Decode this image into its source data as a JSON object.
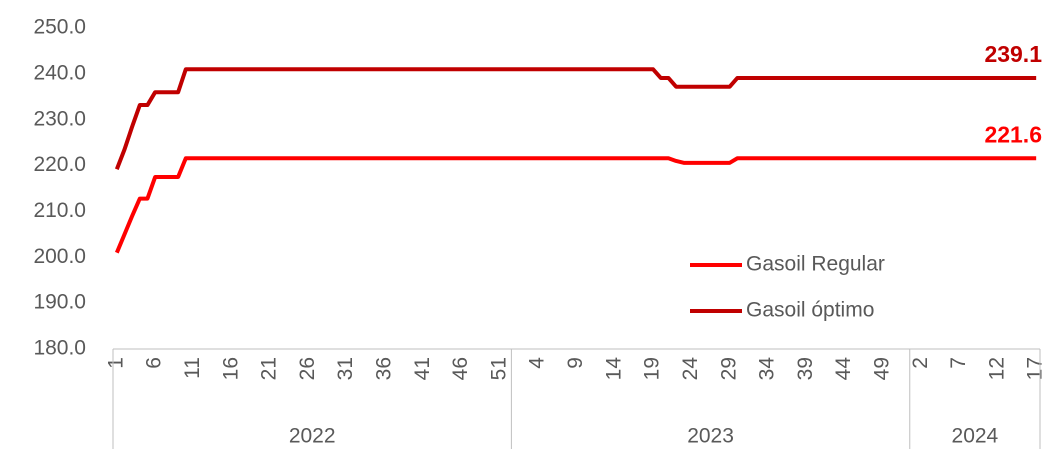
{
  "chart_data": {
    "type": "line",
    "categories": [
      "1",
      null,
      null,
      null,
      null,
      "6",
      null,
      null,
      null,
      null,
      "11",
      null,
      null,
      null,
      null,
      "16",
      null,
      null,
      null,
      null,
      "21",
      null,
      null,
      null,
      null,
      "26",
      null,
      null,
      null,
      null,
      "31",
      null,
      null,
      null,
      null,
      "36",
      null,
      null,
      null,
      null,
      "41",
      null,
      null,
      null,
      null,
      "46",
      null,
      null,
      null,
      null,
      "51",
      null,
      null,
      null,
      null,
      "4",
      null,
      null,
      null,
      null,
      "9",
      null,
      null,
      null,
      null,
      "14",
      null,
      null,
      null,
      null,
      "19",
      null,
      null,
      null,
      null,
      "24",
      null,
      null,
      null,
      null,
      "29",
      null,
      null,
      null,
      null,
      "34",
      null,
      null,
      null,
      null,
      "39",
      null,
      null,
      null,
      null,
      "44",
      null,
      null,
      null,
      null,
      "49",
      null,
      null,
      null,
      null,
      "2",
      null,
      null,
      null,
      null,
      "7",
      null,
      null,
      null,
      null,
      "12",
      null,
      null,
      null,
      null,
      "17"
    ],
    "groups": [
      {
        "name": "2022",
        "size": 52
      },
      {
        "name": "2023",
        "size": 52
      },
      {
        "name": "2024",
        "size": 17
      }
    ],
    "series": [
      {
        "name": "Gasoil Regular",
        "color": "#ff0000",
        "end_label": "221.6",
        "values": [
          201.0,
          205.0,
          209.0,
          212.8,
          212.8,
          217.5,
          217.5,
          217.5,
          217.5,
          221.6,
          221.6,
          221.6,
          221.6,
          221.6,
          221.6,
          221.6,
          221.6,
          221.6,
          221.6,
          221.6,
          221.6,
          221.6,
          221.6,
          221.6,
          221.6,
          221.6,
          221.6,
          221.6,
          221.6,
          221.6,
          221.6,
          221.6,
          221.6,
          221.6,
          221.6,
          221.6,
          221.6,
          221.6,
          221.6,
          221.6,
          221.6,
          221.6,
          221.6,
          221.6,
          221.6,
          221.6,
          221.6,
          221.6,
          221.6,
          221.6,
          221.6,
          221.6,
          221.6,
          221.6,
          221.6,
          221.6,
          221.6,
          221.6,
          221.6,
          221.6,
          221.6,
          221.6,
          221.6,
          221.6,
          221.6,
          221.6,
          221.6,
          221.6,
          221.6,
          221.6,
          221.6,
          221.6,
          221.6,
          221.0,
          220.6,
          220.6,
          220.6,
          220.6,
          220.6,
          220.6,
          220.6,
          221.6,
          221.6,
          221.6,
          221.6,
          221.6,
          221.6,
          221.6,
          221.6,
          221.6,
          221.6,
          221.6,
          221.6,
          221.6,
          221.6,
          221.6,
          221.6,
          221.6,
          221.6,
          221.6,
          221.6,
          221.6,
          221.6,
          221.6,
          221.6,
          221.6,
          221.6,
          221.6,
          221.6,
          221.6,
          221.6,
          221.6,
          221.6,
          221.6,
          221.6,
          221.6,
          221.6,
          221.6,
          221.6,
          221.6,
          221.6
        ]
      },
      {
        "name": "Gasoil óptimo",
        "color": "#c00000",
        "end_label": "239.1",
        "values": [
          219.2,
          223.5,
          228.5,
          233.2,
          233.2,
          236.0,
          236.0,
          236.0,
          236.0,
          241.0,
          241.0,
          241.0,
          241.0,
          241.0,
          241.0,
          241.0,
          241.0,
          241.0,
          241.0,
          241.0,
          241.0,
          241.0,
          241.0,
          241.0,
          241.0,
          241.0,
          241.0,
          241.0,
          241.0,
          241.0,
          241.0,
          241.0,
          241.0,
          241.0,
          241.0,
          241.0,
          241.0,
          241.0,
          241.0,
          241.0,
          241.0,
          241.0,
          241.0,
          241.0,
          241.0,
          241.0,
          241.0,
          241.0,
          241.0,
          241.0,
          241.0,
          241.0,
          241.0,
          241.0,
          241.0,
          241.0,
          241.0,
          241.0,
          241.0,
          241.0,
          241.0,
          241.0,
          241.0,
          241.0,
          241.0,
          241.0,
          241.0,
          241.0,
          241.0,
          241.0,
          241.0,
          239.1,
          239.1,
          237.2,
          237.2,
          237.2,
          237.2,
          237.2,
          237.2,
          237.2,
          237.2,
          239.1,
          239.1,
          239.1,
          239.1,
          239.1,
          239.1,
          239.1,
          239.1,
          239.1,
          239.1,
          239.1,
          239.1,
          239.1,
          239.1,
          239.1,
          239.1,
          239.1,
          239.1,
          239.1,
          239.1,
          239.1,
          239.1,
          239.1,
          239.1,
          239.1,
          239.1,
          239.1,
          239.1,
          239.1,
          239.1,
          239.1,
          239.1,
          239.1,
          239.1,
          239.1,
          239.1,
          239.1,
          239.1,
          239.1,
          239.1
        ]
      }
    ],
    "ylim": [
      180,
      250
    ],
    "yticks": [
      {
        "value": 180,
        "label": "180.0"
      },
      {
        "value": 190,
        "label": "190.0"
      },
      {
        "value": 200,
        "label": "200.0"
      },
      {
        "value": 210,
        "label": "210.0"
      },
      {
        "value": 220,
        "label": "220.0"
      },
      {
        "value": 230,
        "label": "230.0"
      },
      {
        "value": 240,
        "label": "240.0"
      },
      {
        "value": 250,
        "label": "250.0"
      }
    ],
    "grid": false
  }
}
